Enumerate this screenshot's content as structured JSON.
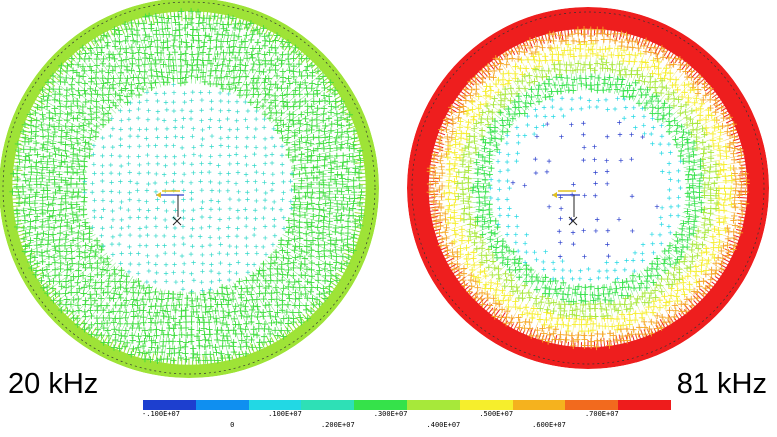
{
  "labels": {
    "left_frequency": "20 kHz",
    "right_frequency": "81 kHz"
  },
  "colorbar": {
    "colors": [
      "#1d3fcf",
      "#0f8ff0",
      "#22d8e4",
      "#2ee0b6",
      "#35e24a",
      "#a7e83a",
      "#f6ee2c",
      "#f5b21e",
      "#f26a1e",
      "#ee1c1c"
    ],
    "tick_labels": [
      "-.100E+07",
      "0",
      ".100E+07",
      ".200E+07",
      ".300E+07",
      ".400E+07",
      ".500E+07",
      ".600E+07",
      ".700E+07"
    ]
  },
  "plots": [
    {
      "name": "20 kHz field",
      "rings": [
        {
          "outer": 1.0,
          "inner": 0.93,
          "color": "#9ee337",
          "style": "solid"
        },
        {
          "outer": 0.93,
          "inner": 0.55,
          "color": "#3ddd3d",
          "style": "mesh"
        },
        {
          "outer": 0.55,
          "inner": 0.0,
          "color": "#2fd8c8",
          "style": "dots"
        }
      ]
    },
    {
      "name": "81 kHz field",
      "rings": [
        {
          "outer": 1.0,
          "inner": 0.88,
          "color": "#ee1e1e",
          "style": "solid"
        },
        {
          "outer": 0.88,
          "inner": 0.8,
          "color": "#f5a623",
          "style": "mesh"
        },
        {
          "outer": 0.8,
          "inner": 0.72,
          "color": "#f6ee2c",
          "style": "mesh"
        },
        {
          "outer": 0.72,
          "inner": 0.64,
          "color": "#a7e83a",
          "style": "mesh"
        },
        {
          "outer": 0.64,
          "inner": 0.54,
          "color": "#35e24a",
          "style": "mesh"
        },
        {
          "outer": 0.54,
          "inner": 0.42,
          "color": "#22d8e4",
          "style": "dots"
        },
        {
          "outer": 0.42,
          "inner": 0.0,
          "color": "#2a3fcc",
          "style": "sparse"
        }
      ]
    }
  ]
}
